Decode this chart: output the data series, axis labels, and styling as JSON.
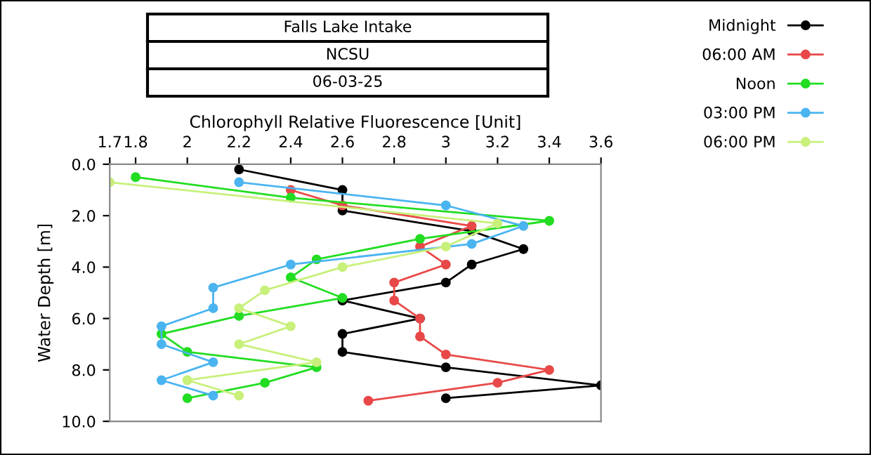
{
  "chart_data": {
    "type": "line",
    "title": "Falls Lake Intake",
    "subtitle": "NCSU",
    "annotations": [
      "06-03-25"
    ],
    "xlabel": "Chlorophyll Relative Fluorescence [Unit]",
    "ylabel": "Water Depth [m]",
    "xlim": [
      1.7,
      3.6
    ],
    "xticks": [
      1.7,
      1.8,
      2,
      2.2,
      2.4,
      2.6,
      2.8,
      3,
      3.2,
      3.4,
      3.6
    ],
    "ylim": [
      10,
      0
    ],
    "yticks": [
      {
        "value": 0,
        "label": "0.0"
      },
      {
        "value": 2,
        "label": "2.0"
      },
      {
        "value": 4,
        "label": "4.0"
      },
      {
        "value": 6,
        "label": "6.0"
      },
      {
        "value": 8,
        "label": "8.0"
      },
      {
        "value": 10,
        "label": "10.0"
      }
    ],
    "grid": false,
    "legend": "top right",
    "marker": "circle",
    "line_style": "solid",
    "series": [
      {
        "name": "Midnight",
        "color": "#000000",
        "x": [
          2.2,
          2.6,
          2.6,
          3.1,
          3.3,
          3.1,
          3.0,
          2.6,
          2.9,
          2.6,
          2.6,
          3.0,
          3.6,
          3.0
        ],
        "values": [
          0.2,
          1.0,
          1.8,
          2.6,
          3.3,
          3.9,
          4.6,
          5.3,
          6.0,
          6.6,
          7.3,
          7.9,
          8.6,
          9.1
        ]
      },
      {
        "name": "06:00 AM",
        "color": "#e84848",
        "x": [
          2.4,
          2.6,
          3.1,
          2.9,
          3.0,
          2.8,
          2.8,
          2.9,
          2.9,
          3.0,
          3.4,
          3.2,
          2.7
        ],
        "values": [
          1.0,
          1.6,
          2.4,
          3.2,
          3.9,
          4.6,
          5.3,
          6.0,
          6.7,
          7.4,
          8.0,
          8.5,
          9.2
        ]
      },
      {
        "name": "Noon",
        "color": "#22dd22",
        "x": [
          1.8,
          2.4,
          3.4,
          2.9,
          2.5,
          2.4,
          2.6,
          2.2,
          1.9,
          2.0,
          2.5,
          2.3,
          2.0
        ],
        "values": [
          0.5,
          1.3,
          2.2,
          2.9,
          3.7,
          4.4,
          5.2,
          5.9,
          6.6,
          7.3,
          7.9,
          8.5,
          9.1
        ]
      },
      {
        "name": "03:00 PM",
        "color": "#4ab4f0",
        "x": [
          2.2,
          3.0,
          3.3,
          3.1,
          2.4,
          2.1,
          2.1,
          1.9,
          1.9,
          2.1,
          1.9,
          2.1
        ],
        "values": [
          0.7,
          1.6,
          2.4,
          3.1,
          3.9,
          4.8,
          5.6,
          6.3,
          7.0,
          7.7,
          8.4,
          9.0
        ]
      },
      {
        "name": "06:00 PM",
        "color": "#c8f07a",
        "x": [
          1.7,
          3.2,
          3.0,
          2.6,
          2.3,
          2.2,
          2.4,
          2.2,
          2.5,
          2.0,
          2.2
        ],
        "values": [
          0.7,
          2.3,
          3.2,
          4.0,
          4.9,
          5.6,
          6.3,
          7.0,
          7.7,
          8.4,
          9.0
        ]
      }
    ]
  }
}
